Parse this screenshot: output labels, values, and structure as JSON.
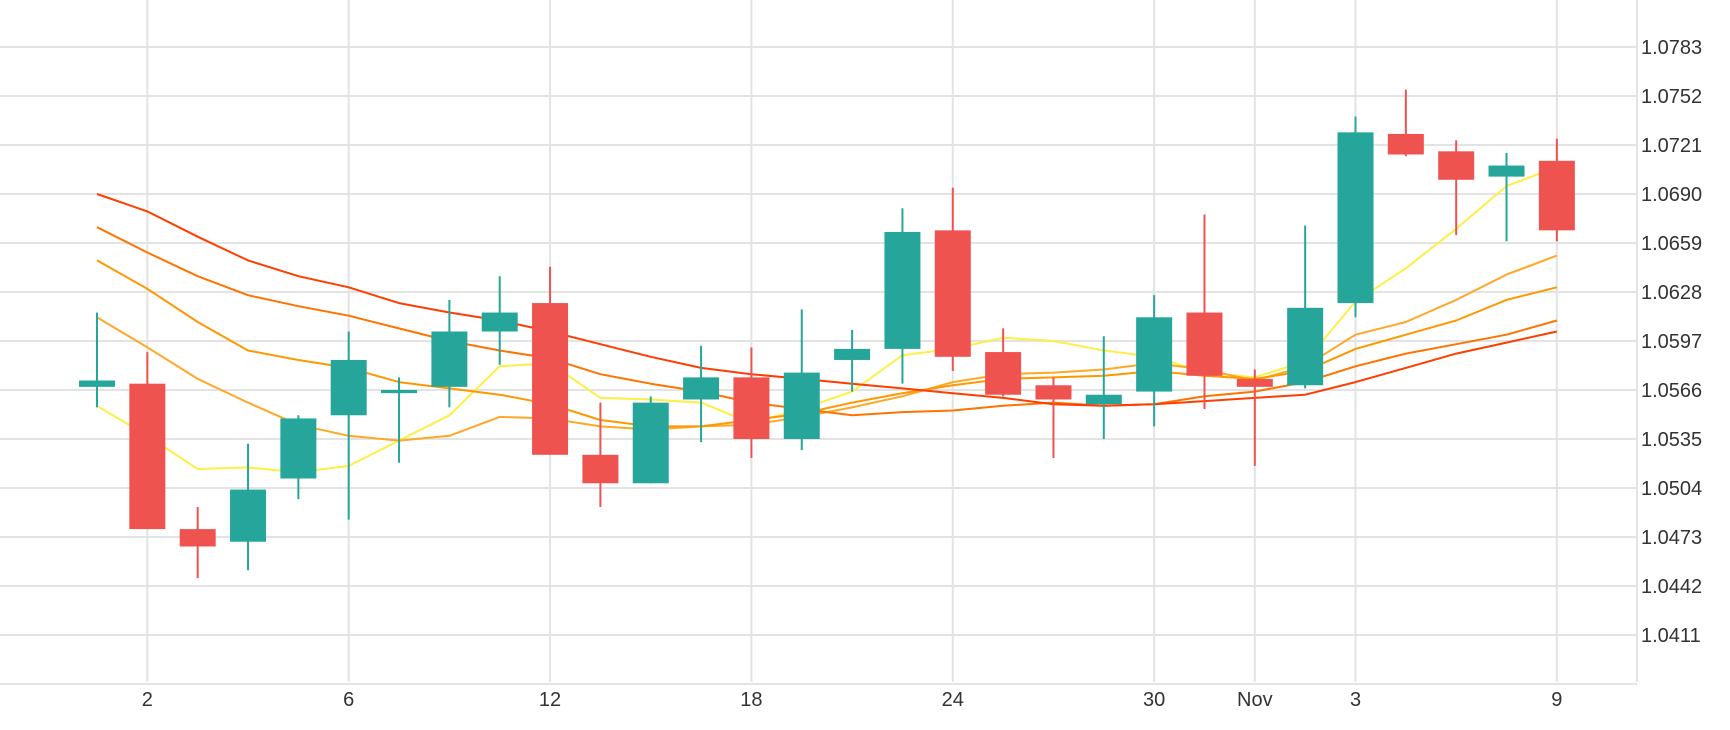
{
  "chart_data": {
    "type": "candlestick",
    "x_tick_labels": [
      "2",
      "6",
      "12",
      "18",
      "24",
      "30",
      "Nov",
      "3",
      "9"
    ],
    "y_tick_labels": [
      "1.0411",
      "1.0442",
      "1.0473",
      "1.0504",
      "1.0535",
      "1.0566",
      "1.0597",
      "1.0628",
      "1.0659",
      "1.0690",
      "1.0721",
      "1.0752",
      "1.0783"
    ],
    "ylim": [
      1.038,
      1.08
    ],
    "grid": true,
    "colors": {
      "up": "#26a69a",
      "down": "#ef5350",
      "grid": "#e3e3e3",
      "text": "#333333"
    },
    "candles": [
      {
        "o": 1.0568,
        "h": 1.0615,
        "l": 1.0555,
        "c": 1.0572
      },
      {
        "o": 1.057,
        "h": 1.059,
        "l": 1.0478,
        "c": 1.0478
      },
      {
        "o": 1.0478,
        "h": 1.0492,
        "l": 1.0447,
        "c": 1.0467
      },
      {
        "o": 1.047,
        "h": 1.0532,
        "l": 1.0452,
        "c": 1.0503
      },
      {
        "o": 1.051,
        "h": 1.055,
        "l": 1.0497,
        "c": 1.0548
      },
      {
        "o": 1.055,
        "h": 1.0603,
        "l": 1.0484,
        "c": 1.0585
      },
      {
        "o": 1.0564,
        "h": 1.0574,
        "l": 1.052,
        "c": 1.0566
      },
      {
        "o": 1.0568,
        "h": 1.0623,
        "l": 1.0555,
        "c": 1.0603
      },
      {
        "o": 1.0603,
        "h": 1.0638,
        "l": 1.0582,
        "c": 1.0615
      },
      {
        "o": 1.0621,
        "h": 1.0644,
        "l": 1.0527,
        "c": 1.0525
      },
      {
        "o": 1.0525,
        "h": 1.0558,
        "l": 1.0492,
        "c": 1.0507
      },
      {
        "o": 1.0507,
        "h": 1.0562,
        "l": 1.0507,
        "c": 1.0558
      },
      {
        "o": 1.056,
        "h": 1.0594,
        "l": 1.0533,
        "c": 1.0574
      },
      {
        "o": 1.0574,
        "h": 1.0593,
        "l": 1.0523,
        "c": 1.0535
      },
      {
        "o": 1.0535,
        "h": 1.0617,
        "l": 1.0528,
        "c": 1.0577
      },
      {
        "o": 1.0585,
        "h": 1.0604,
        "l": 1.0565,
        "c": 1.0592
      },
      {
        "o": 1.0592,
        "h": 1.0681,
        "l": 1.057,
        "c": 1.0666
      },
      {
        "o": 1.0667,
        "h": 1.0694,
        "l": 1.0578,
        "c": 1.0587
      },
      {
        "o": 1.059,
        "h": 1.0605,
        "l": 1.0562,
        "c": 1.0563
      },
      {
        "o": 1.0569,
        "h": 1.0574,
        "l": 1.0523,
        "c": 1.056
      },
      {
        "o": 1.0557,
        "h": 1.06,
        "l": 1.0535,
        "c": 1.0563
      },
      {
        "o": 1.0565,
        "h": 1.0626,
        "l": 1.0543,
        "c": 1.0612
      },
      {
        "o": 1.0615,
        "h": 1.0677,
        "l": 1.0554,
        "c": 1.0575
      },
      {
        "o": 1.0573,
        "h": 1.0579,
        "l": 1.0518,
        "c": 1.0568
      },
      {
        "o": 1.0569,
        "h": 1.067,
        "l": 1.0567,
        "c": 1.0618
      },
      {
        "o": 1.0621,
        "h": 1.0739,
        "l": 1.0612,
        "c": 1.0729
      },
      {
        "o": 1.0728,
        "h": 1.0756,
        "l": 1.0714,
        "c": 1.0715
      },
      {
        "o": 1.0717,
        "h": 1.0724,
        "l": 1.0664,
        "c": 1.0699
      },
      {
        "o": 1.0701,
        "h": 1.0716,
        "l": 1.066,
        "c": 1.0708
      },
      {
        "o": 1.0711,
        "h": 1.0725,
        "l": 1.066,
        "c": 1.0667
      }
    ],
    "moving_averages": [
      {
        "color": "#ffee44",
        "values": [
          1.0556,
          1.0537,
          1.0516,
          1.0517,
          1.0514,
          1.0518,
          1.0534,
          1.055,
          1.0581,
          1.0583,
          1.0561,
          1.056,
          1.0558,
          1.0545,
          1.0554,
          1.0565,
          1.0588,
          1.0592,
          1.0599,
          1.0597,
          1.0591,
          1.0587,
          1.0577,
          1.0574,
          1.0584,
          1.0622,
          1.0643,
          1.0668,
          1.0695,
          1.0707
        ]
      },
      {
        "color": "#ffa726",
        "values": [
          1.0612,
          1.0593,
          1.0573,
          1.0558,
          1.0544,
          1.0537,
          1.0534,
          1.0537,
          1.0549,
          1.0548,
          1.0543,
          1.0541,
          1.0543,
          1.0544,
          1.0549,
          1.0555,
          1.0562,
          1.0571,
          1.0576,
          1.0577,
          1.0579,
          1.0583,
          1.0579,
          1.0572,
          1.0581,
          1.0601,
          1.0609,
          1.0623,
          1.0639,
          1.0651
        ]
      },
      {
        "color": "#ff9800",
        "values": [
          1.0648,
          1.063,
          1.0609,
          1.0591,
          1.0585,
          1.058,
          1.0571,
          1.0567,
          1.0563,
          1.0557,
          1.0547,
          1.0543,
          1.0543,
          1.0547,
          1.0551,
          1.0558,
          1.0564,
          1.0569,
          1.0573,
          1.0574,
          1.0575,
          1.0578,
          1.0575,
          1.0573,
          1.0578,
          1.0592,
          1.0601,
          1.061,
          1.0623,
          1.0631
        ]
      },
      {
        "color": "#ff7300",
        "values": [
          1.0669,
          1.0653,
          1.0638,
          1.0626,
          1.0619,
          1.0613,
          1.0605,
          1.0597,
          1.0591,
          1.0586,
          1.0576,
          1.057,
          1.0565,
          1.0558,
          1.0554,
          1.055,
          1.0552,
          1.0553,
          1.0556,
          1.0558,
          1.0556,
          1.0557,
          1.0562,
          1.0565,
          1.0571,
          1.0581,
          1.0589,
          1.0595,
          1.0601,
          1.061
        ]
      },
      {
        "color": "#ff3d00",
        "values": [
          1.069,
          1.0679,
          1.0663,
          1.0648,
          1.0638,
          1.0631,
          1.0621,
          1.0615,
          1.061,
          1.0603,
          1.0595,
          1.0587,
          1.058,
          1.0576,
          1.0573,
          1.057,
          1.0567,
          1.0564,
          1.0561,
          1.0557,
          1.0556,
          1.0557,
          1.0559,
          1.0561,
          1.0563,
          1.0571,
          1.058,
          1.0589,
          1.0596,
          1.0603
        ]
      }
    ]
  }
}
